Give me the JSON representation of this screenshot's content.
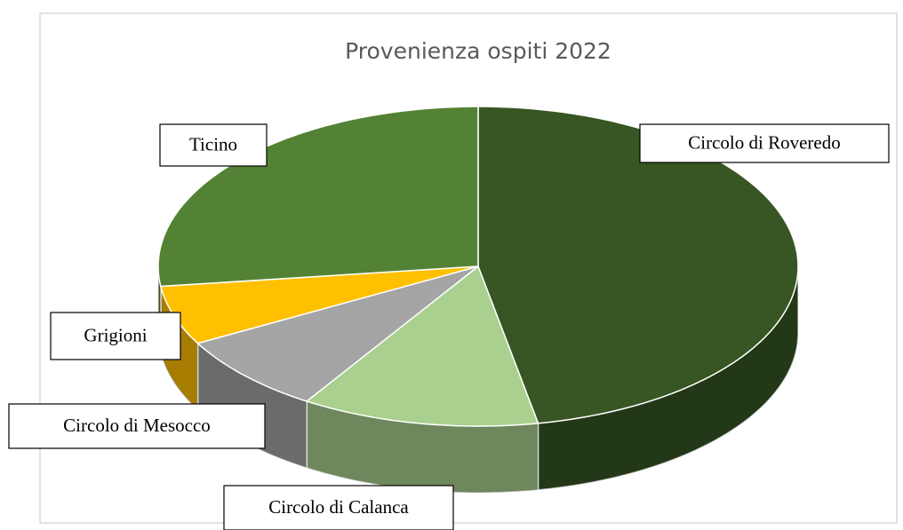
{
  "chart_data": {
    "type": "pie",
    "title": "Provenienza ospiti 2022",
    "categories": [
      "Circolo di Roveredo",
      "Circolo di Calanca",
      "Circolo di Mesocco",
      "Grigioni",
      "Ticino"
    ],
    "values": [
      47,
      12,
      8,
      6,
      27
    ],
    "colors": [
      "#375623",
      "#a9d08e",
      "#a5a5a5",
      "#ffc000",
      "#548235"
    ]
  }
}
